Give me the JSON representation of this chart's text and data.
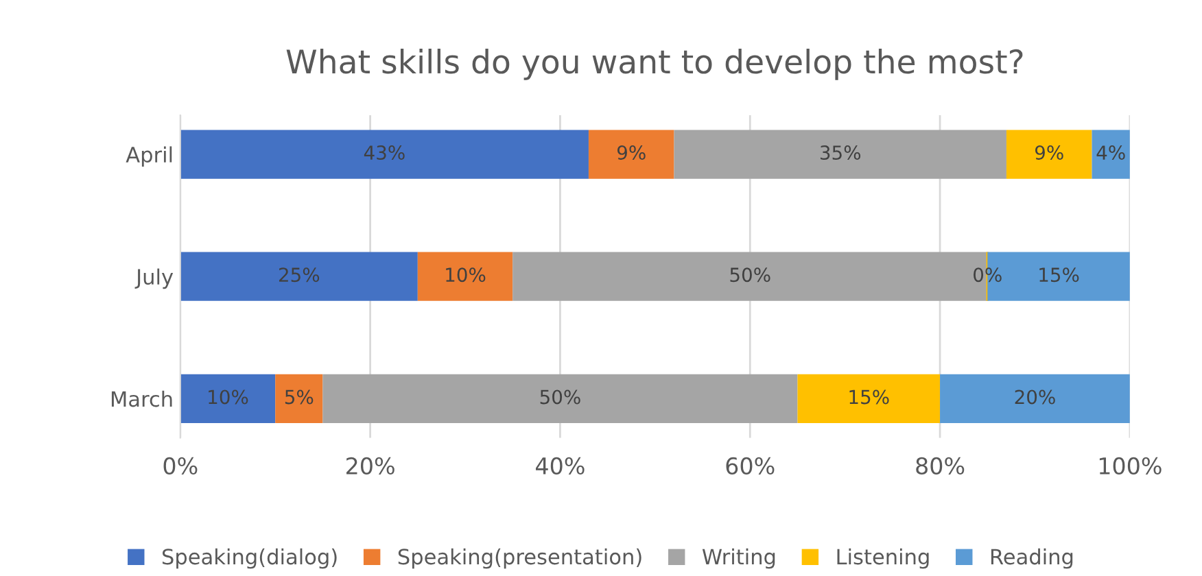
{
  "chart_data": {
    "type": "bar",
    "orientation": "horizontal",
    "stacked": true,
    "title": "What skills do you want to develop the most?",
    "categories": [
      "April",
      "July",
      "March"
    ],
    "series": [
      {
        "name": "Speaking(dialog)",
        "color": "#4472c4",
        "values": [
          43,
          25,
          10
        ],
        "value_labels": [
          "43%",
          "25%",
          "10%"
        ]
      },
      {
        "name": "Speaking(presentation)",
        "color": "#ed7d31",
        "values": [
          9,
          10,
          5
        ],
        "value_labels": [
          "9%",
          "10%",
          "5%"
        ]
      },
      {
        "name": "Writing",
        "color": "#a5a5a5",
        "values": [
          35,
          50,
          50
        ],
        "value_labels": [
          "35%",
          "50%",
          "50%"
        ]
      },
      {
        "name": "Listening",
        "color": "#ffc000",
        "values": [
          9,
          0,
          15
        ],
        "value_labels": [
          "9%",
          "0%",
          "15%"
        ]
      },
      {
        "name": "Reading",
        "color": "#5b9bd5",
        "values": [
          4,
          15,
          20
        ],
        "value_labels": [
          "4%",
          "15%",
          "20%"
        ]
      }
    ],
    "xlim": [
      0,
      100
    ],
    "xticks": [
      {
        "value": 0,
        "label": "0%"
      },
      {
        "value": 20,
        "label": "20%"
      },
      {
        "value": 40,
        "label": "40%"
      },
      {
        "value": 60,
        "label": "60%"
      },
      {
        "value": 80,
        "label": "80%"
      },
      {
        "value": 100,
        "label": "100%"
      }
    ],
    "grid": "x",
    "legend": "bottom"
  }
}
